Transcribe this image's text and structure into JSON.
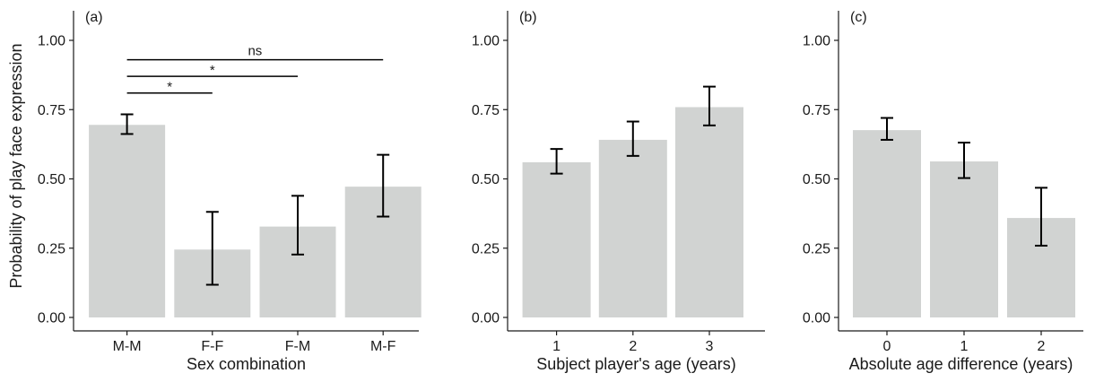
{
  "figure": {
    "y_axis_title": "Probability of play face expression"
  },
  "chart_data": [
    {
      "type": "bar",
      "panel_label": "(a)",
      "xlabel": "Sex combination",
      "ylabel": "Probability of play face expression",
      "categories": [
        "M-M",
        "F-F",
        "F-M",
        "M-F"
      ],
      "values": [
        0.695,
        0.245,
        0.328,
        0.472
      ],
      "error_low": [
        0.662,
        0.118,
        0.227,
        0.364
      ],
      "error_high": [
        0.733,
        0.381,
        0.439,
        0.587
      ],
      "ylim": [
        0,
        1.1
      ],
      "yticks": [
        0,
        0.25,
        0.5,
        0.75,
        1.0
      ],
      "ytick_labels": [
        "0.00",
        "0.25",
        "0.50",
        "0.75",
        "1.00"
      ],
      "grid": false,
      "bar_color": "#d1d3d2",
      "significance": [
        {
          "from": "M-M",
          "to": "F-F",
          "label": "*",
          "y": 0.81
        },
        {
          "from": "M-M",
          "to": "F-M",
          "label": "*",
          "y": 0.87
        },
        {
          "from": "M-M",
          "to": "M-F",
          "label": "ns",
          "y": 0.93
        }
      ]
    },
    {
      "type": "bar",
      "panel_label": "(b)",
      "xlabel": "Subject player's age (years)",
      "ylabel": "",
      "categories": [
        "1",
        "2",
        "3"
      ],
      "values": [
        0.56,
        0.641,
        0.759
      ],
      "error_low": [
        0.519,
        0.583,
        0.693
      ],
      "error_high": [
        0.608,
        0.707,
        0.833
      ],
      "ylim": [
        0,
        1.1
      ],
      "yticks": [
        0,
        0.25,
        0.5,
        0.75,
        1.0
      ],
      "ytick_labels": [
        "0.00",
        "0.25",
        "0.50",
        "0.75",
        "1.00"
      ],
      "grid": false,
      "bar_color": "#d1d3d2",
      "significance": []
    },
    {
      "type": "bar",
      "panel_label": "(c)",
      "xlabel": "Absolute age difference (years)",
      "ylabel": "",
      "categories": [
        "0",
        "1",
        "2"
      ],
      "values": [
        0.676,
        0.563,
        0.359
      ],
      "error_low": [
        0.641,
        0.503,
        0.259
      ],
      "error_high": [
        0.72,
        0.631,
        0.468
      ],
      "ylim": [
        0,
        1.1
      ],
      "yticks": [
        0,
        0.25,
        0.5,
        0.75,
        1.0
      ],
      "ytick_labels": [
        "0.00",
        "0.25",
        "0.50",
        "0.75",
        "1.00"
      ],
      "grid": false,
      "bar_color": "#d1d3d2",
      "significance": []
    }
  ]
}
